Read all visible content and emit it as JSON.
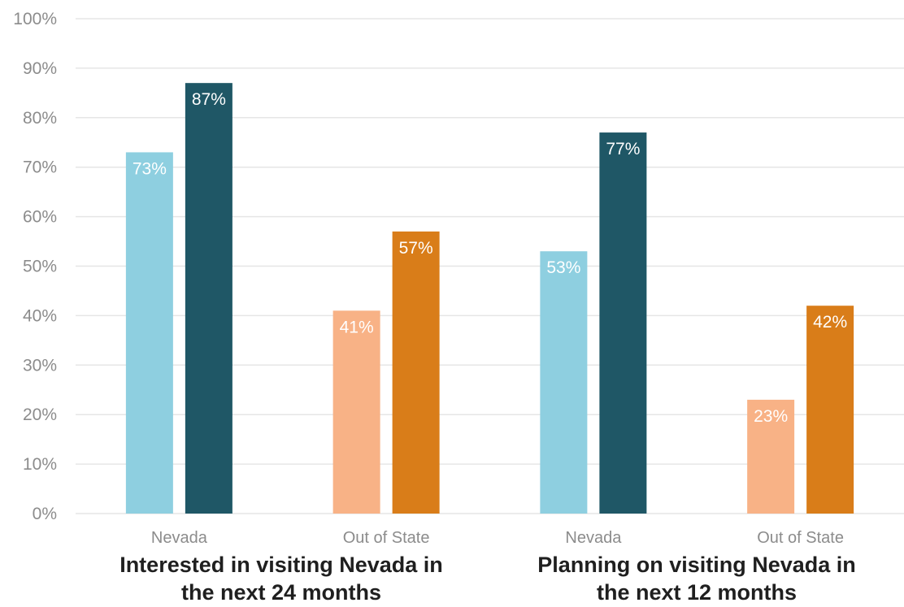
{
  "chart_data": {
    "type": "bar",
    "groups": [
      {
        "label_line1": "Interested in visiting Nevada in",
        "label_line2": "the next 24 months",
        "categories": [
          {
            "label": "Nevada",
            "bars": [
              {
                "value": 73,
                "label": "73%",
                "color": "#8ecfe0"
              },
              {
                "value": 87,
                "label": "87%",
                "color": "#1f5766"
              }
            ]
          },
          {
            "label": "Out of State",
            "bars": [
              {
                "value": 41,
                "label": "41%",
                "color": "#f8b286"
              },
              {
                "value": 57,
                "label": "57%",
                "color": "#d97d19"
              }
            ]
          }
        ]
      },
      {
        "label_line1": "Planning on visiting Nevada in",
        "label_line2": "the next 12 months",
        "categories": [
          {
            "label": "Nevada",
            "bars": [
              {
                "value": 53,
                "label": "53%",
                "color": "#8ecfe0"
              },
              {
                "value": 77,
                "label": "77%",
                "color": "#1f5766"
              }
            ]
          },
          {
            "label": "Out of State",
            "bars": [
              {
                "value": 23,
                "label": "23%",
                "color": "#f8b286"
              },
              {
                "value": 42,
                "label": "42%",
                "color": "#d97d19"
              }
            ]
          }
        ]
      }
    ],
    "yticks": [
      "0%",
      "10%",
      "20%",
      "30%",
      "40%",
      "50%",
      "60%",
      "70%",
      "80%",
      "90%",
      "100%"
    ],
    "ylim": [
      0,
      100
    ],
    "grid": true,
    "legend": "none"
  }
}
